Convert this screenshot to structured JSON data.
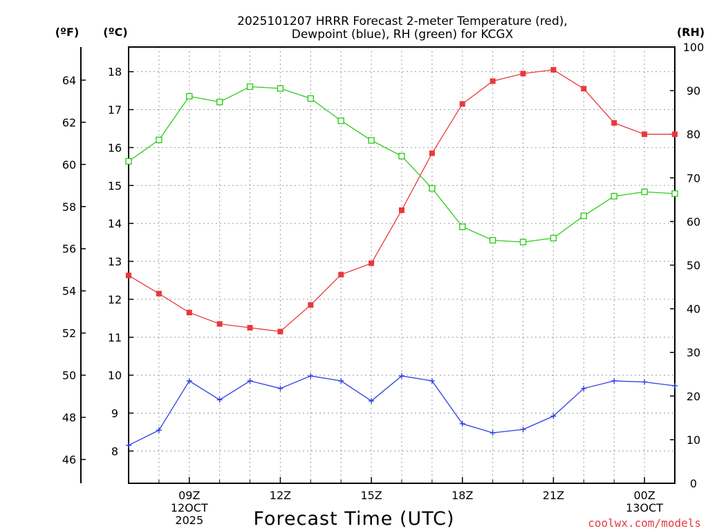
{
  "title_line1": "2025101207 HRRR Forecast 2-meter Temperature (red),",
  "title_line2": "Dewpoint (blue), RH (green) for KCGX",
  "colors": {
    "temperature": "#e8383c",
    "dewpoint": "#2c3fe0",
    "rh": "#2ecc1e",
    "credit": "#e8383c"
  },
  "chart_data": {
    "type": "line",
    "title": "2025101207 HRRR Forecast 2-meter Temperature (red), Dewpoint (blue), RH (green) for KCGX",
    "xlabel": "Forecast Time (UTC)",
    "units": {
      "left_f": "(ºF)",
      "left_c": "(ºC)",
      "right_rh": "(RH)"
    },
    "x_hours": [
      7,
      8,
      9,
      10,
      11,
      12,
      13,
      14,
      15,
      16,
      17,
      18,
      19,
      20,
      21,
      22,
      23,
      24,
      25
    ],
    "xlim": [
      7,
      25
    ],
    "x_ticks": [
      {
        "hour": 9,
        "line1": "09Z",
        "line2": "12OCT",
        "line3": "2025"
      },
      {
        "hour": 12,
        "line1": "12Z",
        "line2": "",
        "line3": ""
      },
      {
        "hour": 15,
        "line1": "15Z",
        "line2": "",
        "line3": ""
      },
      {
        "hour": 18,
        "line1": "18Z",
        "line2": "",
        "line3": ""
      },
      {
        "hour": 21,
        "line1": "21Z",
        "line2": "",
        "line3": ""
      },
      {
        "hour": 24,
        "line1": "00Z",
        "line2": "13OCT",
        "line3": ""
      }
    ],
    "c_axis": {
      "min": 7.15,
      "max": 18.65,
      "ticks": [
        8,
        9,
        10,
        11,
        12,
        13,
        14,
        15,
        16,
        17,
        18
      ]
    },
    "f_axis": {
      "min": 44.87,
      "max": 65.57,
      "ticks": [
        46,
        48,
        50,
        52,
        54,
        56,
        58,
        60,
        62,
        64
      ]
    },
    "rh_axis": {
      "min": 0,
      "max": 100,
      "ticks": [
        0,
        10,
        20,
        30,
        40,
        50,
        60,
        70,
        80,
        90,
        100
      ]
    },
    "series": [
      {
        "name": "2-meter Temperature",
        "color": "#e8383c",
        "units": "C",
        "marker": "filled-square",
        "values": [
          12.63,
          12.15,
          11.65,
          11.35,
          11.25,
          11.15,
          11.85,
          12.65,
          12.95,
          14.35,
          15.85,
          17.15,
          17.75,
          17.95,
          18.05,
          17.55,
          16.65,
          16.35,
          16.35
        ]
      },
      {
        "name": "Dewpoint",
        "color": "#2c3fe0",
        "units": "C",
        "marker": "plus",
        "values": [
          8.15,
          8.55,
          9.85,
          9.35,
          9.85,
          9.65,
          9.98,
          9.85,
          9.32,
          9.98,
          9.85,
          8.72,
          8.48,
          8.57,
          8.92,
          9.65,
          9.85,
          9.82,
          9.72
        ]
      },
      {
        "name": "RH",
        "color": "#2ecc1e",
        "units": "%",
        "marker": "open-square",
        "values": [
          73.8,
          78.7,
          88.7,
          87.4,
          90.9,
          90.5,
          88.2,
          83.1,
          78.6,
          75.0,
          67.6,
          58.8,
          55.7,
          55.3,
          56.2,
          61.3,
          65.8,
          66.8,
          66.4
        ]
      }
    ]
  },
  "credit": "coolwx.com/models"
}
